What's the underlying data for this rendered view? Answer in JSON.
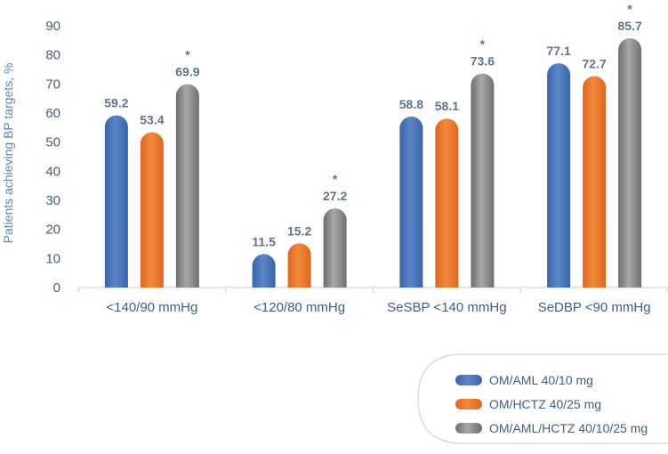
{
  "chart_data": {
    "type": "bar",
    "title": "",
    "xlabel": "",
    "ylabel": "Patients achieving BP targets, %",
    "ylim": [
      0,
      90
    ],
    "yticks": [
      0,
      10,
      20,
      30,
      40,
      50,
      60,
      70,
      80,
      90
    ],
    "categories": [
      "<140/90 mmHg",
      "<120/80 mmHg",
      "SeSBP <140 mmHg",
      "SeDBP <90 mmHg"
    ],
    "series": [
      {
        "name": "OM/AML 40/10 mg",
        "values": [
          59.2,
          11.5,
          58.8,
          77.1
        ],
        "color": "#3a64a8",
        "color_light": "#5b86c8",
        "labels": [
          "59.2",
          "11.5",
          "58.8",
          "77.1"
        ]
      },
      {
        "name": "OM/HCTZ 40/25 mg",
        "values": [
          53.4,
          15.2,
          58.1,
          72.7
        ],
        "color": "#e0651f",
        "color_light": "#f08a3c",
        "labels": [
          "53.4",
          "15.2",
          "58.1",
          "72.7"
        ]
      },
      {
        "name": "OM/AML/HCTZ 40/10/25 mg",
        "values": [
          69.9,
          27.2,
          73.6,
          85.7
        ],
        "color": "#6e6e6e",
        "color_light": "#a8a8a8",
        "labels": [
          "69.9",
          "27.2",
          "73.6",
          "85.7"
        ]
      }
    ],
    "significance_marker": "*",
    "significant_series": 2,
    "legend_position": "bottom-right",
    "grid": false
  }
}
